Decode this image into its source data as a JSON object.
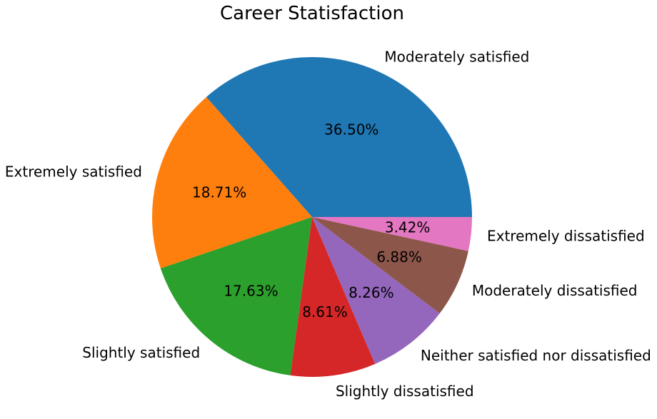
{
  "chart_data": {
    "type": "pie",
    "title": "Career Statisfaction",
    "start_angle_deg": 0,
    "direction": "counterclockwise",
    "slices": [
      {
        "label": "Moderately satisfied",
        "value": 36.5,
        "pct_label": "36.50%",
        "color": "#1f77b4"
      },
      {
        "label": "Extremely satisfied",
        "value": 18.71,
        "pct_label": "18.71%",
        "color": "#ff7f0e"
      },
      {
        "label": "Slightly satisfied",
        "value": 17.63,
        "pct_label": "17.63%",
        "color": "#2ca02c"
      },
      {
        "label": "Slightly dissatisfied",
        "value": 8.61,
        "pct_label": "8.61%",
        "color": "#d62728"
      },
      {
        "label": "Neither satisfied nor dissatisfied",
        "value": 8.26,
        "pct_label": "8.26%",
        "color": "#9467bd"
      },
      {
        "label": "Moderately dissatisfied",
        "value": 6.88,
        "pct_label": "6.88%",
        "color": "#8c564b"
      },
      {
        "label": "Extremely dissatisfied",
        "value": 3.42,
        "pct_label": "3.42%",
        "color": "#e377c2"
      }
    ]
  }
}
